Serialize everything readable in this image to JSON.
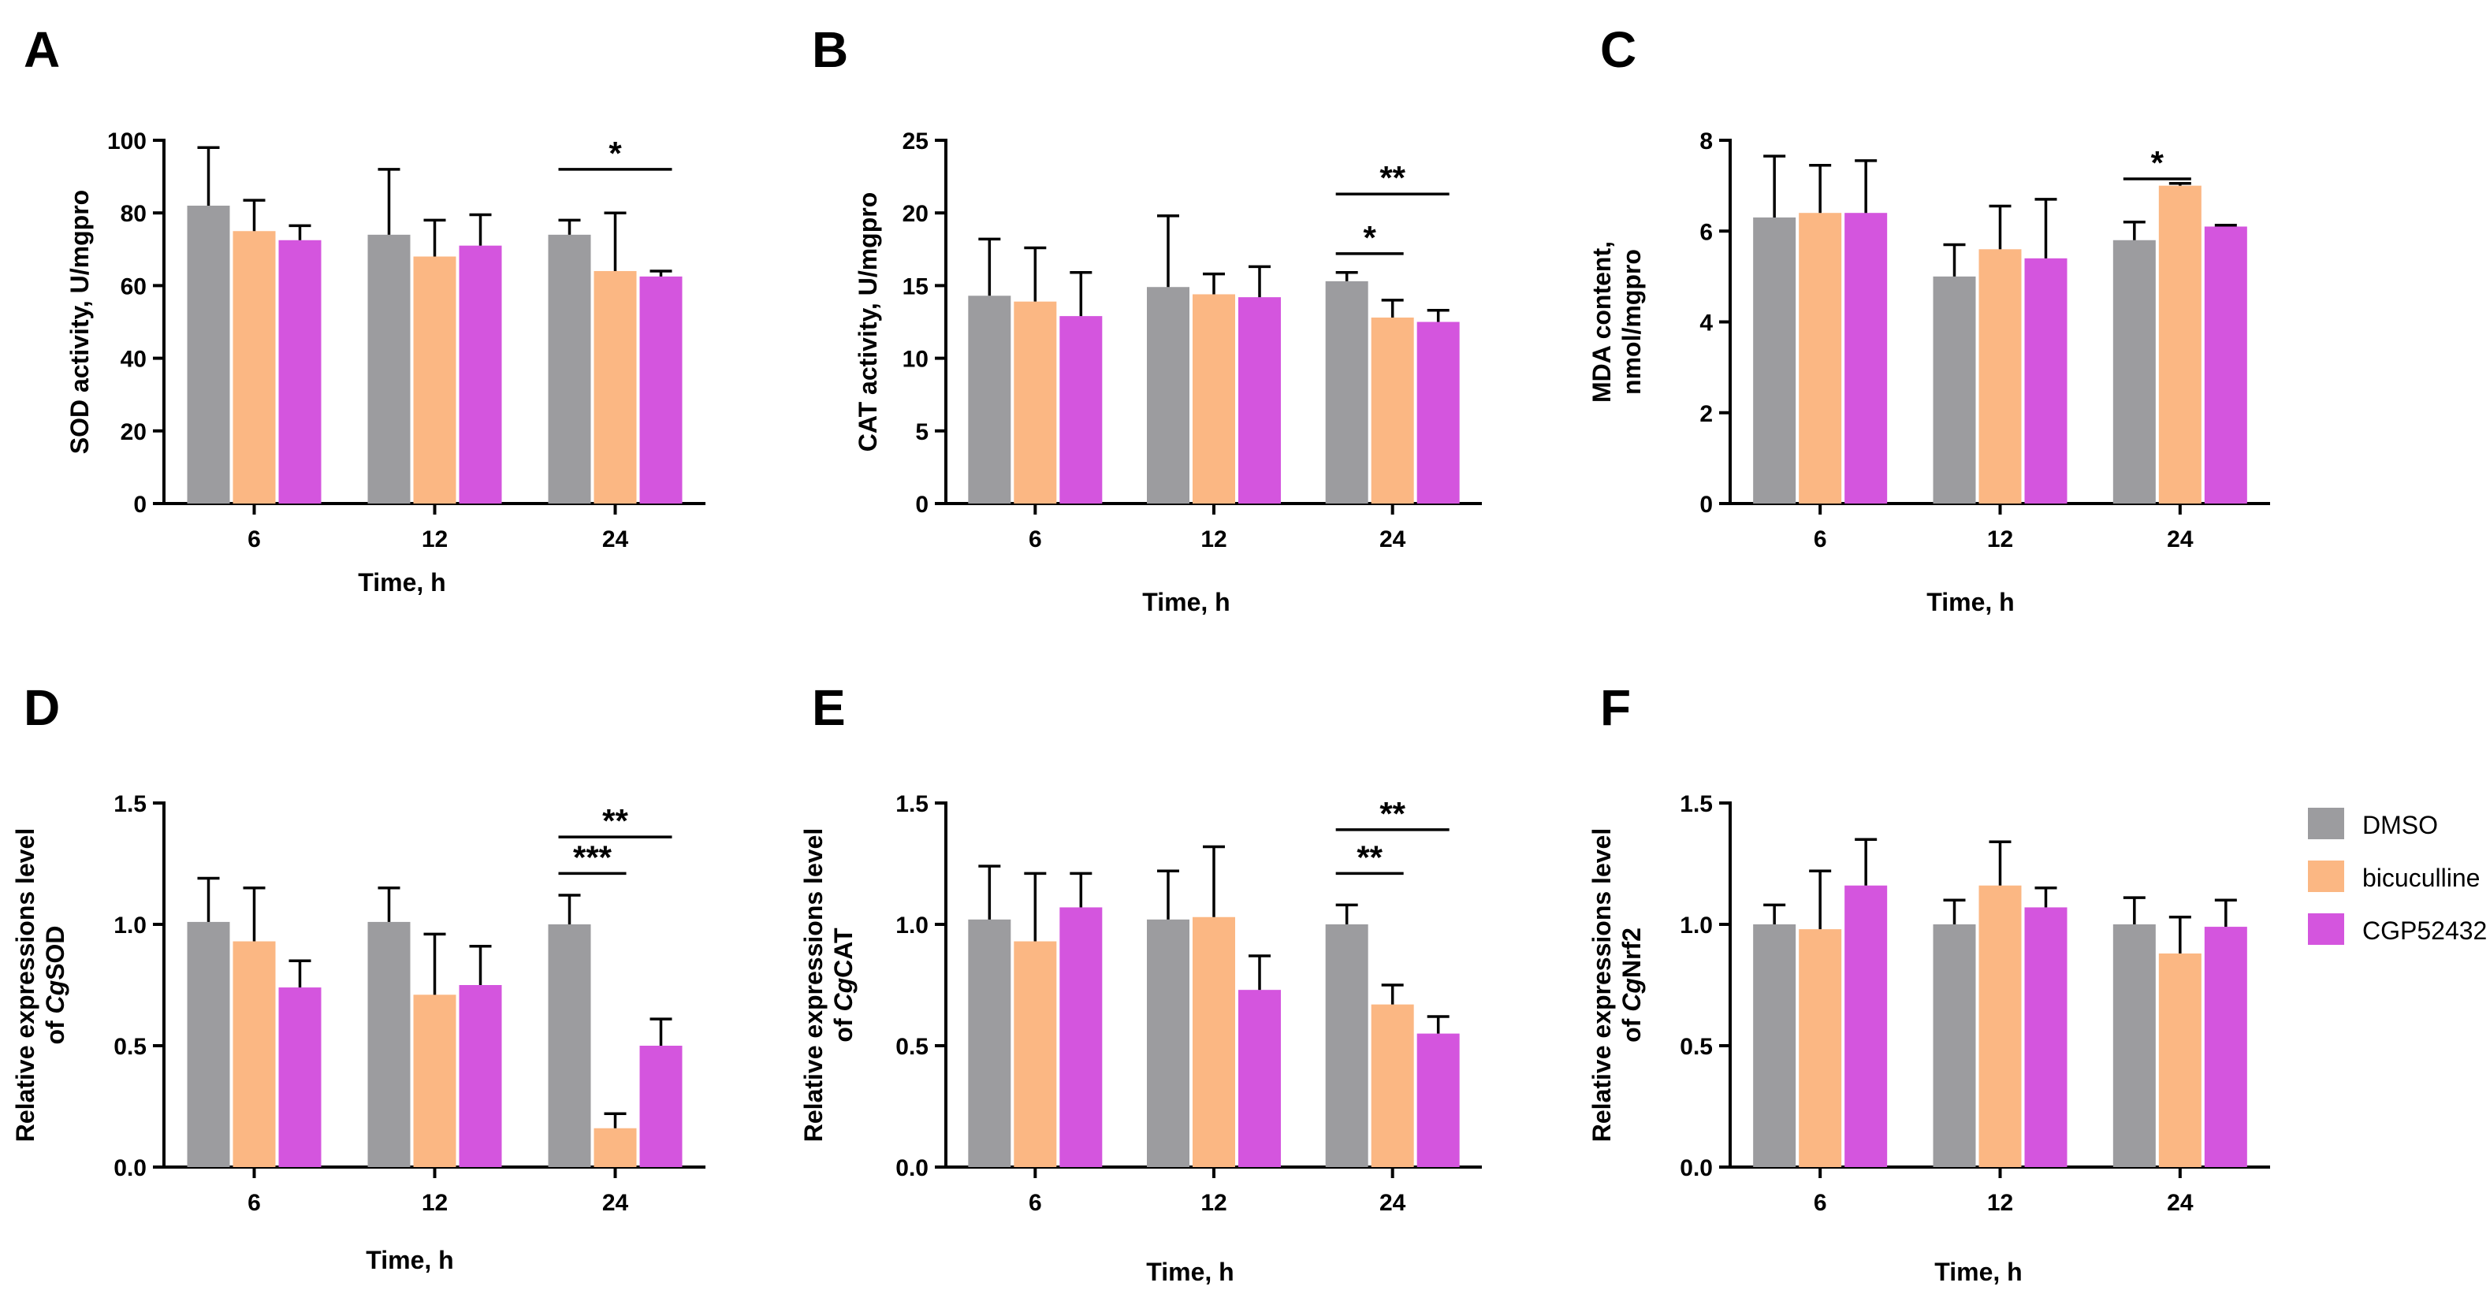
{
  "figure": {
    "panels": [
      "A",
      "B",
      "C",
      "D",
      "E",
      "F"
    ],
    "legend": [
      {
        "label": "DMSO",
        "color": "#9c9c9f"
      },
      {
        "label": "bicuculline",
        "color": "#fbb783"
      },
      {
        "label": "CGP52432",
        "color": "#d455de"
      }
    ]
  },
  "chart_data": [
    {
      "panel": "A",
      "type": "bar",
      "xlabel": "Time, h",
      "ylabel_lines": [
        [
          {
            "t": "SOD activity, U/mgpro"
          }
        ]
      ],
      "ylim": [
        0,
        100
      ],
      "yticks": [
        "0",
        "20",
        "40",
        "60",
        "80",
        "100"
      ],
      "categories": [
        "6",
        "12",
        "24"
      ],
      "series": [
        {
          "name": "DMSO",
          "values": [
            82,
            74,
            74
          ],
          "errors": [
            16,
            18,
            4
          ]
        },
        {
          "name": "bicuculline",
          "values": [
            75,
            68,
            64
          ],
          "errors": [
            8.5,
            10,
            16
          ]
        },
        {
          "name": "CGP52432",
          "values": [
            72.5,
            71,
            62.5
          ],
          "errors": [
            4,
            8.5,
            1.5
          ]
        }
      ],
      "significance": [
        {
          "group": 2,
          "from": 0,
          "to": 2,
          "label": "*",
          "y": 92
        }
      ]
    },
    {
      "panel": "B",
      "type": "bar",
      "xlabel": "Time, h",
      "ylabel_lines": [
        [
          {
            "t": "CAT activity, U/mgpro"
          }
        ]
      ],
      "ylim": [
        0,
        25
      ],
      "yticks": [
        "0",
        "5",
        "10",
        "15",
        "20",
        "25"
      ],
      "categories": [
        "6",
        "12",
        "24"
      ],
      "series": [
        {
          "name": "DMSO",
          "values": [
            14.3,
            14.9,
            15.3
          ],
          "errors": [
            3.9,
            4.9,
            0.6
          ]
        },
        {
          "name": "bicuculline",
          "values": [
            13.9,
            14.4,
            12.8
          ],
          "errors": [
            3.7,
            1.4,
            1.2
          ]
        },
        {
          "name": "CGP52432",
          "values": [
            12.9,
            14.2,
            12.5
          ],
          "errors": [
            3.0,
            2.1,
            0.8
          ]
        }
      ],
      "significance": [
        {
          "group": 2,
          "from": 0,
          "to": 1,
          "label": "*",
          "y": 17.2
        },
        {
          "group": 2,
          "from": 0,
          "to": 2,
          "label": "**",
          "y": 21.3
        }
      ]
    },
    {
      "panel": "C",
      "type": "bar",
      "xlabel": "Time, h",
      "ylabel_lines": [
        [
          {
            "t": "MDA content,"
          }
        ],
        [
          {
            "t": "nmol/mgpro"
          }
        ]
      ],
      "ylim": [
        0,
        8
      ],
      "yticks": [
        "0",
        "2",
        "4",
        "6",
        "8"
      ],
      "categories": [
        "6",
        "12",
        "24"
      ],
      "series": [
        {
          "name": "DMSO",
          "values": [
            6.3,
            5.0,
            5.8
          ],
          "errors": [
            1.35,
            0.7,
            0.4
          ]
        },
        {
          "name": "bicuculline",
          "values": [
            6.4,
            5.6,
            7.0
          ],
          "errors": [
            1.05,
            0.95,
            0.05
          ]
        },
        {
          "name": "CGP52432",
          "values": [
            6.4,
            5.4,
            6.1
          ],
          "errors": [
            1.15,
            1.3,
            0.03
          ]
        }
      ],
      "significance": [
        {
          "group": 2,
          "from": 0,
          "to": 1,
          "label": "*",
          "y": 7.15
        }
      ]
    },
    {
      "panel": "D",
      "type": "bar",
      "xlabel": "Time, h",
      "ylabel_lines": [
        [
          {
            "t": "Relative  expressions level"
          }
        ],
        [
          {
            "t": "of "
          },
          {
            "t": "Cg",
            "italic": true
          },
          {
            "t": "SOD"
          }
        ]
      ],
      "ylim": [
        0,
        1.5
      ],
      "yticks": [
        "0.0",
        "0.5",
        "1.0",
        "1.5"
      ],
      "categories": [
        "6",
        "12",
        "24"
      ],
      "series": [
        {
          "name": "DMSO",
          "values": [
            1.01,
            1.01,
            1.0
          ],
          "errors": [
            0.18,
            0.14,
            0.12
          ]
        },
        {
          "name": "bicuculline",
          "values": [
            0.93,
            0.71,
            0.16
          ],
          "errors": [
            0.22,
            0.25,
            0.06
          ]
        },
        {
          "name": "CGP52432",
          "values": [
            0.74,
            0.75,
            0.5
          ],
          "errors": [
            0.11,
            0.16,
            0.11
          ]
        }
      ],
      "significance": [
        {
          "group": 2,
          "from": 0,
          "to": 1,
          "label": "***",
          "y": 1.21
        },
        {
          "group": 2,
          "from": 0,
          "to": 2,
          "label": "**",
          "y": 1.36
        }
      ]
    },
    {
      "panel": "E",
      "type": "bar",
      "xlabel": "Time, h",
      "ylabel_lines": [
        [
          {
            "t": "Relative  expressions level"
          }
        ],
        [
          {
            "t": "of "
          },
          {
            "t": "Cg",
            "italic": true
          },
          {
            "t": "CAT"
          }
        ]
      ],
      "ylim": [
        0,
        1.5
      ],
      "yticks": [
        "0.0",
        "0.5",
        "1.0",
        "1.5"
      ],
      "categories": [
        "6",
        "12",
        "24"
      ],
      "series": [
        {
          "name": "DMSO",
          "values": [
            1.02,
            1.02,
            1.0
          ],
          "errors": [
            0.22,
            0.2,
            0.08
          ]
        },
        {
          "name": "bicuculline",
          "values": [
            0.93,
            1.03,
            0.67
          ],
          "errors": [
            0.28,
            0.29,
            0.08
          ]
        },
        {
          "name": "CGP52432",
          "values": [
            1.07,
            0.73,
            0.55
          ],
          "errors": [
            0.14,
            0.14,
            0.07
          ]
        }
      ],
      "significance": [
        {
          "group": 2,
          "from": 0,
          "to": 1,
          "label": "**",
          "y": 1.21
        },
        {
          "group": 2,
          "from": 0,
          "to": 2,
          "label": "**",
          "y": 1.39
        }
      ]
    },
    {
      "panel": "F",
      "type": "bar",
      "xlabel": "Time, h",
      "ylabel_lines": [
        [
          {
            "t": "Relative  expressions level"
          }
        ],
        [
          {
            "t": "of "
          },
          {
            "t": "Cg",
            "italic": true
          },
          {
            "t": "Nrf2"
          }
        ]
      ],
      "ylim": [
        0,
        1.5
      ],
      "yticks": [
        "0.0",
        "0.5",
        "1.0",
        "1.5"
      ],
      "categories": [
        "6",
        "12",
        "24"
      ],
      "series": [
        {
          "name": "DMSO",
          "values": [
            1.0,
            1.0,
            1.0
          ],
          "errors": [
            0.08,
            0.1,
            0.11
          ]
        },
        {
          "name": "bicuculline",
          "values": [
            0.98,
            1.16,
            0.88
          ],
          "errors": [
            0.24,
            0.18,
            0.15
          ]
        },
        {
          "name": "CGP52432",
          "values": [
            1.16,
            1.07,
            0.99
          ],
          "errors": [
            0.19,
            0.08,
            0.11
          ]
        }
      ],
      "significance": []
    }
  ]
}
